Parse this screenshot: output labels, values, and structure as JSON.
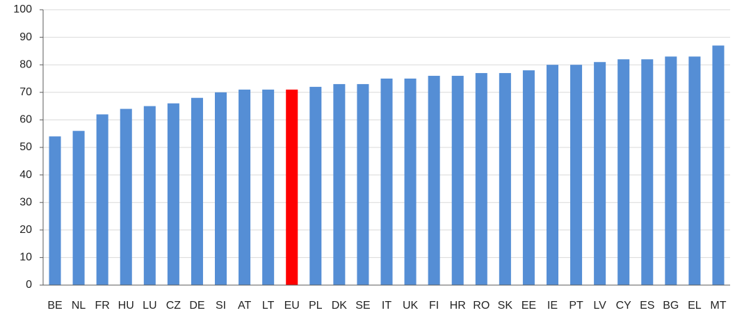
{
  "chart_data": {
    "type": "bar",
    "categories": [
      "BE",
      "NL",
      "FR",
      "HU",
      "LU",
      "CZ",
      "DE",
      "SI",
      "AT",
      "LT",
      "EU",
      "PL",
      "DK",
      "SE",
      "IT",
      "UK",
      "FI",
      "HR",
      "RO",
      "SK",
      "EE",
      "IE",
      "PT",
      "LV",
      "CY",
      "ES",
      "BG",
      "EL",
      "MT"
    ],
    "values": [
      54,
      56,
      62,
      64,
      65,
      66,
      68,
      70,
      71,
      71,
      71,
      72,
      73,
      73,
      75,
      75,
      76,
      76,
      77,
      77,
      78,
      80,
      80,
      81,
      82,
      82,
      83,
      83,
      87
    ],
    "colors": [
      "#558ed5",
      "#558ed5",
      "#558ed5",
      "#558ed5",
      "#558ed5",
      "#558ed5",
      "#558ed5",
      "#558ed5",
      "#558ed5",
      "#558ed5",
      "#ff0000",
      "#558ed5",
      "#558ed5",
      "#558ed5",
      "#558ed5",
      "#558ed5",
      "#558ed5",
      "#558ed5",
      "#558ed5",
      "#558ed5",
      "#558ed5",
      "#558ed5",
      "#558ed5",
      "#558ed5",
      "#558ed5",
      "#558ed5",
      "#558ed5",
      "#558ed5",
      "#558ed5"
    ],
    "ylim": [
      0,
      100
    ],
    "yticks": [
      0,
      10,
      20,
      30,
      40,
      50,
      60,
      70,
      80,
      90,
      100
    ],
    "grid": true
  }
}
